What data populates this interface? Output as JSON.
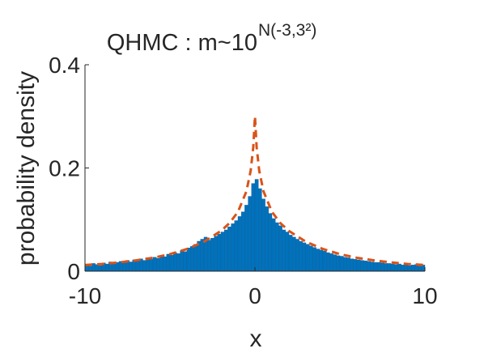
{
  "chart_data": {
    "type": "histogram",
    "title": "QHMC : m~10",
    "title_exponent": "N(-3,3²)",
    "xlabel": "x",
    "ylabel": "probability density",
    "xlim": [
      -10,
      10
    ],
    "xticks": [
      -10,
      0,
      10
    ],
    "ylim": [
      0,
      0.4
    ],
    "yticks": [
      0,
      0.2,
      0.4
    ],
    "color": "#0072bd",
    "bins": [
      -10,
      -9.8,
      -9.6,
      -9.4,
      -9.2,
      -9,
      -8.8,
      -8.6,
      -8.4,
      -8.2,
      -8,
      -7.8,
      -7.6,
      -7.4,
      -7.2,
      -7,
      -6.8,
      -6.6,
      -6.4,
      -6.2,
      -6,
      -5.8,
      -5.6,
      -5.4,
      -5.2,
      -5,
      -4.8,
      -4.6,
      -4.4,
      -4.2,
      -4,
      -3.8,
      -3.6,
      -3.4,
      -3.2,
      -3,
      -2.8,
      -2.6,
      -2.4,
      -2.2,
      -2,
      -1.8,
      -1.6,
      -1.4,
      -1.2,
      -1,
      -0.8,
      -0.6,
      -0.4,
      -0.2,
      0,
      0.2,
      0.4,
      0.6,
      0.8,
      1,
      1.2,
      1.4,
      1.6,
      1.8,
      2,
      2.2,
      2.4,
      2.6,
      2.8,
      3,
      3.2,
      3.4,
      3.6,
      3.8,
      4,
      4.2,
      4.4,
      4.6,
      4.8,
      5,
      5.2,
      5.4,
      5.6,
      5.8,
      6,
      6.2,
      6.4,
      6.6,
      6.8,
      7,
      7.2,
      7.4,
      7.6,
      7.8,
      8,
      8.2,
      8.4,
      8.6,
      8.8,
      9,
      9.2,
      9.4,
      9.6,
      9.8,
      10
    ],
    "values": [
      0.012,
      0.01,
      0.015,
      0.013,
      0.011,
      0.016,
      0.014,
      0.018,
      0.015,
      0.017,
      0.019,
      0.016,
      0.021,
      0.018,
      0.022,
      0.02,
      0.024,
      0.021,
      0.026,
      0.023,
      0.027,
      0.025,
      0.03,
      0.028,
      0.033,
      0.031,
      0.036,
      0.034,
      0.04,
      0.038,
      0.045,
      0.048,
      0.052,
      0.058,
      0.062,
      0.066,
      0.06,
      0.064,
      0.068,
      0.072,
      0.076,
      0.08,
      0.086,
      0.092,
      0.098,
      0.106,
      0.115,
      0.128,
      0.145,
      0.17,
      0.178,
      0.16,
      0.14,
      0.125,
      0.112,
      0.102,
      0.094,
      0.088,
      0.08,
      0.076,
      0.07,
      0.066,
      0.062,
      0.058,
      0.055,
      0.052,
      0.049,
      0.046,
      0.043,
      0.041,
      0.039,
      0.036,
      0.034,
      0.032,
      0.03,
      0.029,
      0.027,
      0.026,
      0.024,
      0.023,
      0.022,
      0.021,
      0.02,
      0.019,
      0.018,
      0.017,
      0.017,
      0.016,
      0.015,
      0.015,
      0.014,
      0.013,
      0.014,
      0.012,
      0.013,
      0.011,
      0.012,
      0.013,
      0.01,
      0.012
    ],
    "density": {
      "type": "line",
      "color": "#d95319",
      "dashed": true,
      "x": [
        -10,
        -9,
        -8,
        -7,
        -6,
        -5,
        -4,
        -3,
        -2,
        -1.5,
        -1,
        -0.5,
        -0.25,
        -0.1,
        0,
        0.1,
        0.25,
        0.5,
        1,
        1.5,
        2,
        3,
        4,
        5,
        6,
        7,
        8,
        9,
        10
      ],
      "values": [
        0.012,
        0.014,
        0.017,
        0.021,
        0.026,
        0.033,
        0.043,
        0.057,
        0.078,
        0.093,
        0.115,
        0.155,
        0.195,
        0.24,
        0.3,
        0.24,
        0.195,
        0.155,
        0.115,
        0.093,
        0.078,
        0.057,
        0.043,
        0.033,
        0.026,
        0.021,
        0.017,
        0.014,
        0.012
      ]
    }
  }
}
